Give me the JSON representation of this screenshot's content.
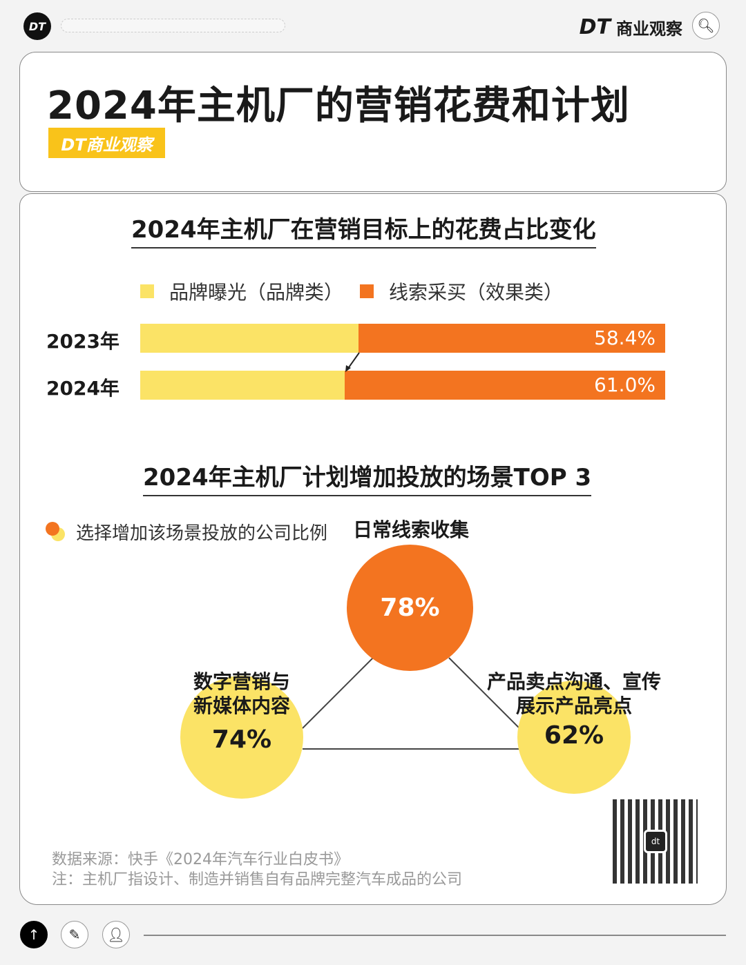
{
  "header": {
    "logo": "DT",
    "brand_logo": "DT",
    "brand_name": "商业观察",
    "search_icon": "search-icon"
  },
  "title": "2024年主机厂的营销花费和计划",
  "badge": "DT商业观察",
  "colors": {
    "yellow": "#fbe366",
    "orange": "#f37420",
    "badge": "#f9c31a"
  },
  "chart_data": [
    {
      "type": "bar",
      "stacked": true,
      "orientation": "horizontal",
      "title": "2024年主机厂在营销目标上的花费占比变化",
      "legend": [
        "品牌曝光（品牌类）",
        "线索采买（效果类）"
      ],
      "legend_placement": "top",
      "categories": [
        "2023年",
        "2024年"
      ],
      "series": [
        {
          "name": "品牌曝光（品牌类）",
          "values": [
            41.6,
            39.0
          ]
        },
        {
          "name": "线索采买（效果类）",
          "values": [
            58.4,
            61.0
          ],
          "labels": [
            "58.4%",
            "61.0%"
          ]
        }
      ],
      "xlim": [
        0,
        100
      ]
    },
    {
      "type": "bubble",
      "title": "2024年主机厂计划增加投放的场景TOP 3",
      "legend": "选择增加该场景投放的公司比例",
      "items": [
        {
          "name": "日常线索收集",
          "value": 78,
          "label": "78%"
        },
        {
          "name": "数字营销与新媒体内容",
          "line1": "数字营销与",
          "line2": "新媒体内容",
          "value": 74,
          "label": "74%"
        },
        {
          "name": "产品卖点沟通、宣传展示产品亮点",
          "line1": "产品卖点沟通、宣传",
          "line2": "展示产品亮点",
          "value": 62,
          "label": "62%"
        }
      ]
    }
  ],
  "footer": {
    "source": "数据来源：快手《2024年汽车行业白皮书》",
    "note": "注：主机厂指设计、制造并销售自有品牌完整汽车成品的公司",
    "qr_text": "dt"
  }
}
